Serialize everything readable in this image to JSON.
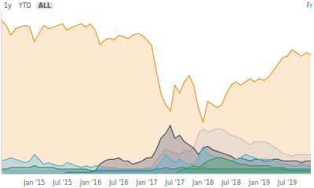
{
  "chart_data": {
    "type": "area",
    "buttons": [
      "1y",
      "YTD",
      "ALL"
    ],
    "selected_button": "ALL",
    "date_label": "Fr",
    "categories": [
      null,
      null,
      null,
      null,
      null,
      null,
      null,
      "Jan '15",
      null,
      null,
      null,
      null,
      null,
      "Jul '15",
      null,
      null,
      null,
      null,
      null,
      "Jan '16",
      null,
      null,
      null,
      null,
      null,
      "Jul '16",
      null,
      null,
      null,
      null,
      null,
      "Jan '17",
      null,
      null,
      null,
      null,
      null,
      "Jul '17",
      null,
      null,
      null,
      null,
      null,
      "Jan '18",
      null,
      null,
      null,
      null,
      null,
      "Jul '18",
      null,
      null,
      null,
      null,
      null,
      "Jan '19",
      null,
      null,
      null,
      null,
      null,
      "Jul '19",
      null,
      null,
      null,
      null,
      null
    ],
    "series": [
      {
        "color": "#f7931a",
        "values": [
          95,
          92,
          86,
          90,
          91,
          92,
          91,
          82,
          87,
          92,
          90,
          91,
          92,
          93,
          89,
          91,
          92,
          93,
          91,
          93,
          89,
          80,
          83,
          84,
          83,
          86,
          85,
          84,
          86,
          87,
          86,
          83,
          80,
          64,
          50,
          43,
          39,
          55,
          50,
          57,
          61,
          55,
          41,
          32,
          45,
          43,
          41,
          43,
          50,
          55,
          57,
          55,
          57,
          59,
          57,
          59,
          58,
          60,
          64,
          68,
          72,
          73,
          77,
          75,
          73,
          75,
          74
        ]
      },
      {
        "color": "#c4c4c4",
        "values": [
          2,
          2,
          2,
          2,
          2,
          2,
          2,
          2,
          2,
          2,
          2,
          2,
          2,
          2,
          2,
          2,
          2,
          2,
          2,
          2,
          2,
          3,
          3,
          3,
          3,
          3,
          3,
          3,
          3,
          3,
          3,
          4,
          4,
          8,
          12,
          15,
          14,
          13,
          12,
          14,
          14,
          16,
          25,
          28,
          26,
          27,
          28,
          28,
          26,
          24,
          23,
          22,
          20,
          18,
          20,
          20,
          20,
          19,
          17,
          15,
          13,
          12,
          11,
          12,
          12,
          12,
          12
        ]
      },
      {
        "color": "#4b4f72",
        "values": [
          0,
          0,
          0,
          0,
          0,
          0,
          0,
          0,
          0,
          0,
          0,
          0,
          0,
          0,
          1,
          1,
          1,
          1,
          1,
          1,
          2,
          6,
          8,
          9,
          9,
          10,
          8,
          8,
          6,
          7,
          8,
          10,
          10,
          15,
          22,
          25,
          30,
          22,
          24,
          20,
          18,
          16,
          12,
          16,
          17,
          15,
          14,
          13,
          12,
          11,
          9,
          10,
          9,
          8,
          9,
          9,
          8,
          8,
          9,
          9,
          8,
          8,
          8,
          8,
          7,
          8,
          8
        ]
      },
      {
        "color": "#4fb3d9",
        "values": [
          8,
          9,
          10,
          9,
          8,
          7,
          8,
          12,
          9,
          6,
          7,
          6,
          5,
          5,
          7,
          6,
          5,
          4,
          5,
          4,
          5,
          5,
          4,
          4,
          4,
          3,
          3,
          3,
          3,
          3,
          3,
          3,
          3,
          4,
          8,
          12,
          9,
          7,
          9,
          7,
          6,
          6,
          10,
          17,
          12,
          11,
          10,
          10,
          9,
          8,
          9,
          10,
          12,
          11,
          10,
          9,
          9,
          9,
          8,
          7,
          6,
          6,
          5,
          5,
          6,
          5,
          5
        ]
      },
      {
        "color": "#2a8f8a",
        "values": [
          3,
          3,
          4,
          4,
          4,
          4,
          4,
          5,
          4,
          4,
          4,
          4,
          3,
          3,
          3,
          3,
          3,
          3,
          3,
          2,
          2,
          2,
          2,
          2,
          2,
          2,
          2,
          2,
          2,
          2,
          2,
          2,
          2,
          3,
          3,
          4,
          3,
          3,
          4,
          4,
          3,
          3,
          3,
          4,
          3,
          3,
          3,
          3,
          3,
          3,
          3,
          3,
          3,
          3,
          3,
          3,
          3,
          3,
          3,
          3,
          3,
          2,
          2,
          2,
          2,
          2,
          2
        ]
      },
      {
        "color": "#3e9a48",
        "values": [
          0,
          0,
          0,
          0,
          0,
          0,
          0,
          0,
          0,
          0,
          0,
          0,
          0,
          0,
          0,
          0,
          0,
          0,
          0,
          0,
          0,
          0,
          0,
          0,
          0,
          0,
          0,
          0,
          0,
          0,
          0,
          0,
          0,
          0,
          0,
          0,
          0,
          0,
          2,
          3,
          4,
          5,
          4,
          6,
          8,
          9,
          10,
          10,
          9,
          8,
          7,
          6,
          6,
          5,
          5,
          5,
          5,
          5,
          4,
          4,
          4,
          3,
          3,
          3,
          3,
          3,
          3
        ]
      }
    ],
    "ylim": [
      0,
      100
    ],
    "tick_labels": "x",
    "grid": false
  }
}
